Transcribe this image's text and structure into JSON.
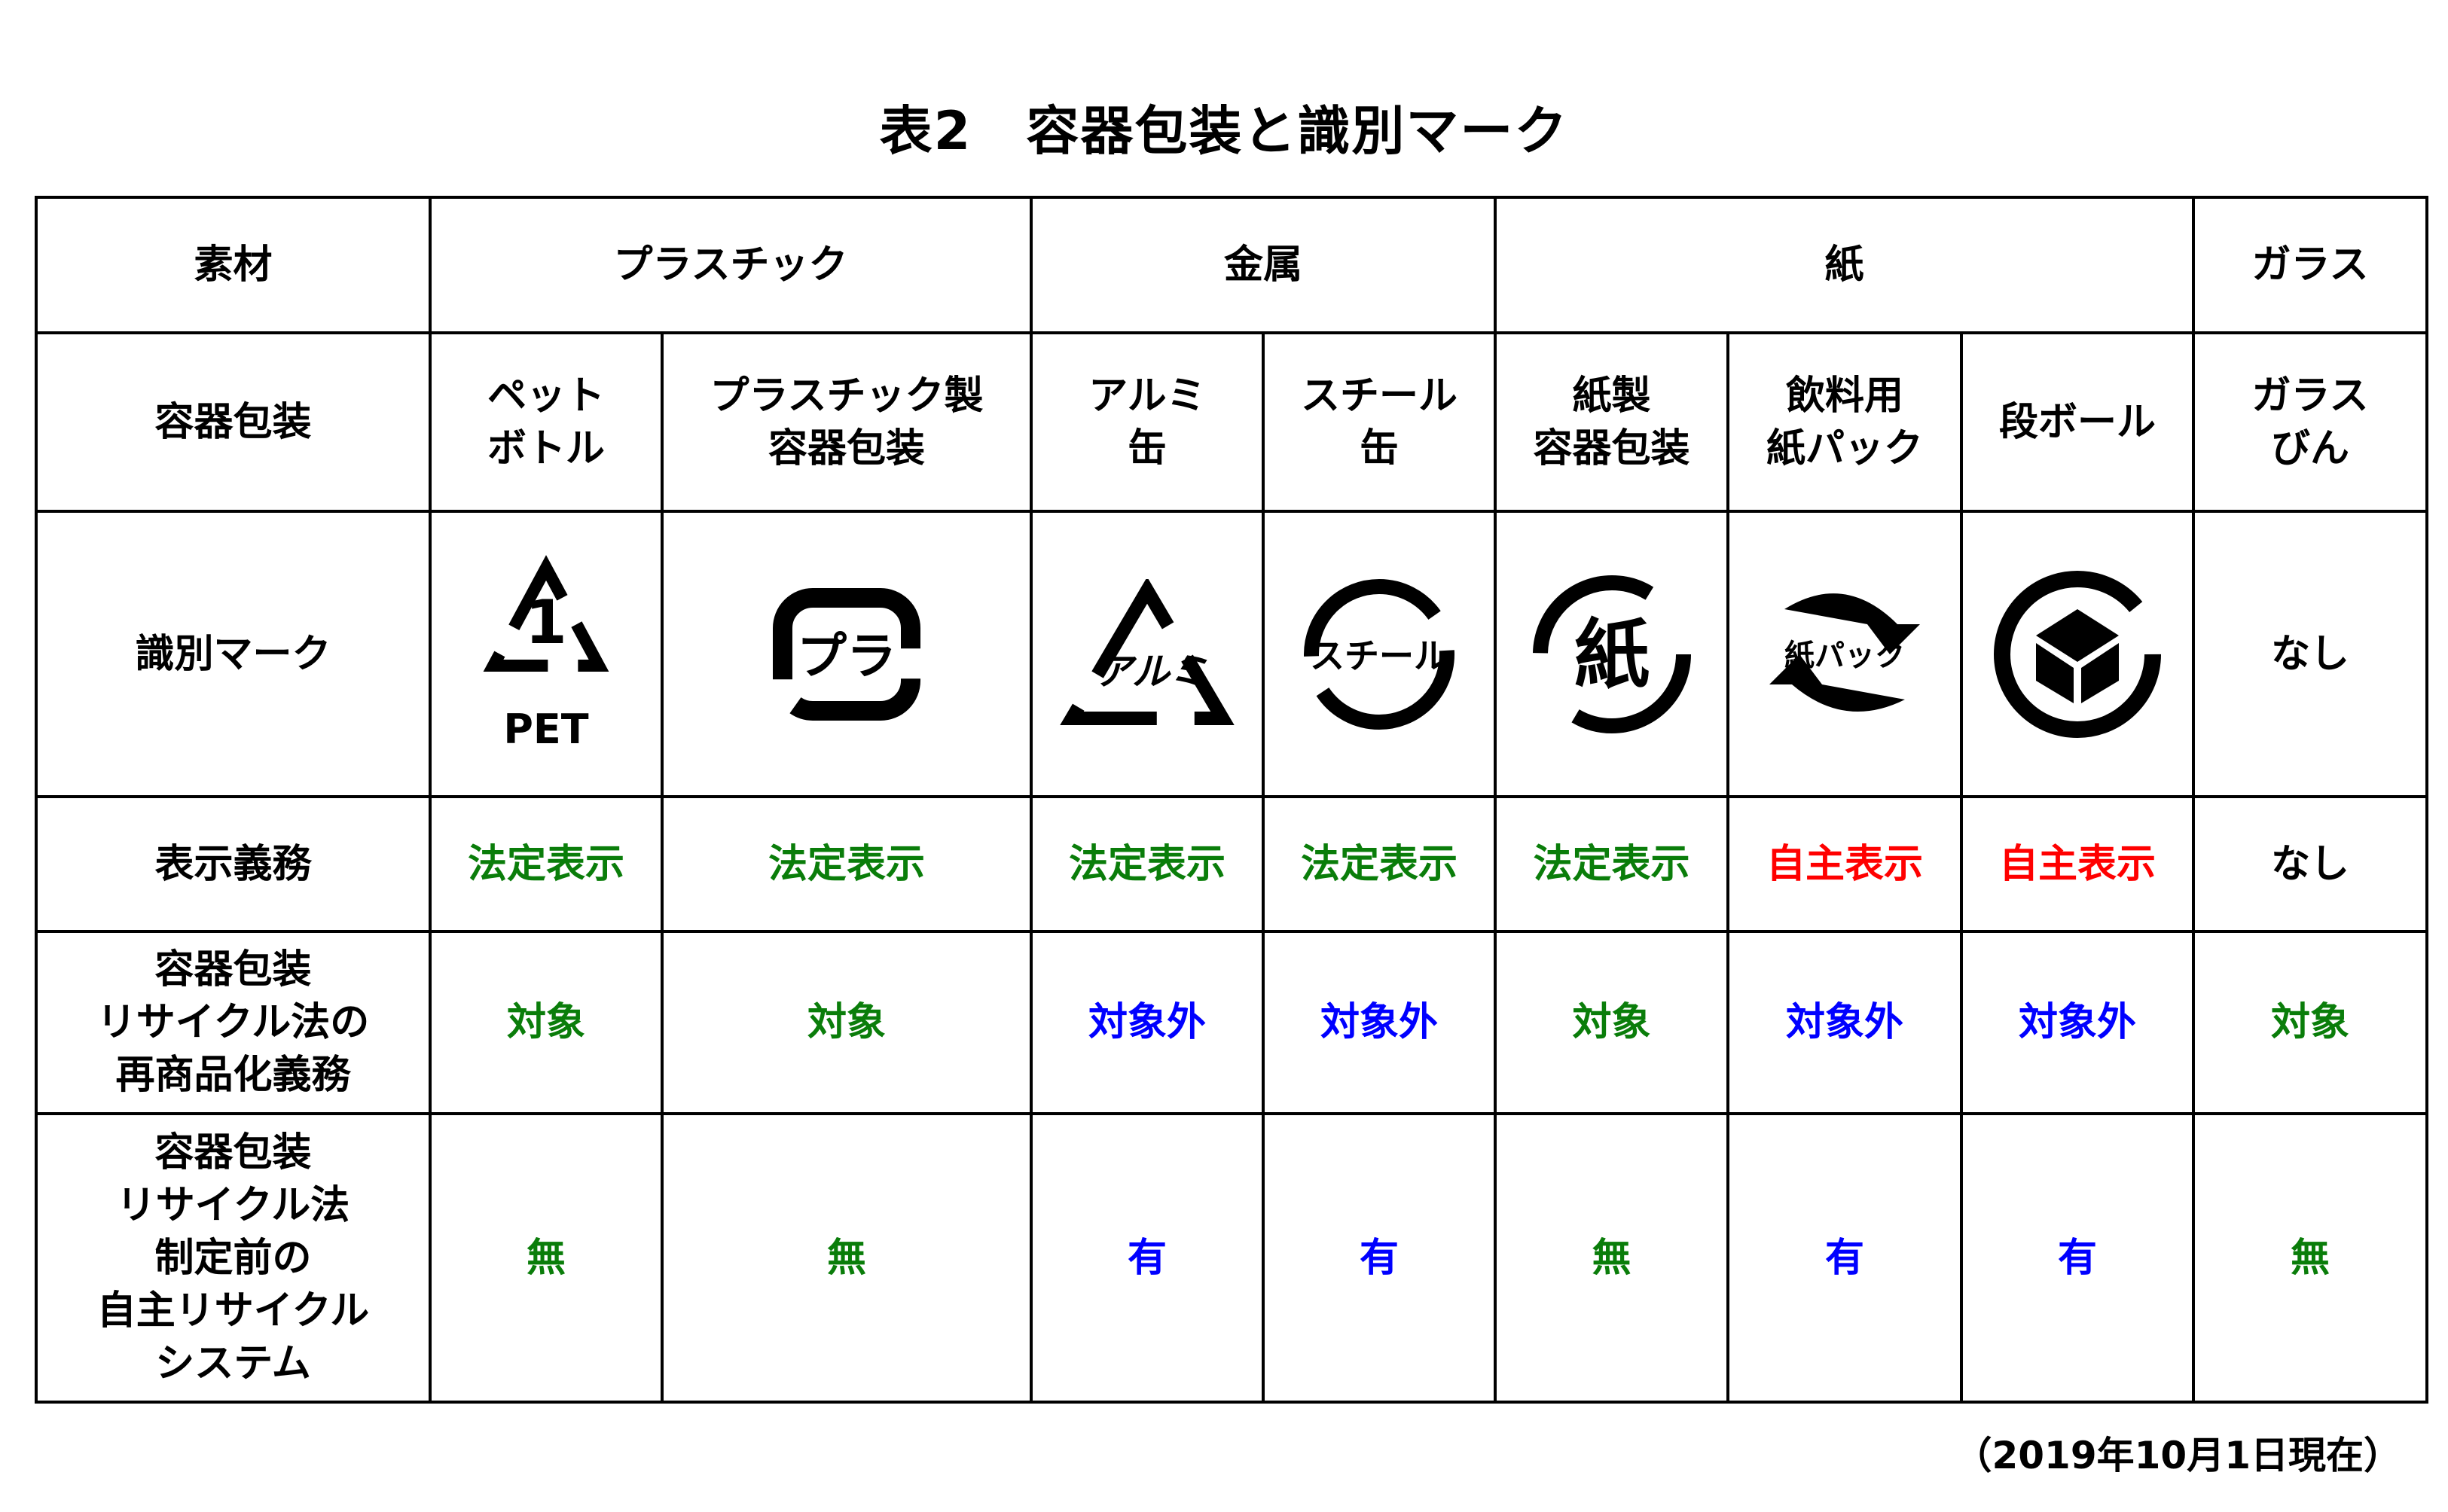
{
  "title": "表2　容器包装と識別マーク",
  "headers": {
    "material": "素材",
    "plastic": "プラスチック",
    "metal": "金属",
    "paper": "紙",
    "glass": "ガラス"
  },
  "row_labels": {
    "container": "容器包装",
    "mark": "識別マーク",
    "obligation": "表示義務",
    "reprocess": "容器包装\nリサイクル法の\n再商品化義務",
    "voluntary": "容器包装\nリサイクル法\n制定前の\n自主リサイクル\nシステム"
  },
  "columns": [
    {
      "name": "ペット\nボトル",
      "mark": "pet-recycle-mark",
      "mark_text": "1",
      "mark_caption": "PET",
      "obligation": "法定表示",
      "obl_color": "g",
      "reprocess": "対象",
      "rp_color": "g",
      "voluntary": "無",
      "v_color": "g"
    },
    {
      "name": "プラスチック製\n容器包装",
      "mark": "pla-recycle-mark",
      "mark_text": "プラ",
      "obligation": "法定表示",
      "obl_color": "g",
      "reprocess": "対象",
      "rp_color": "g",
      "voluntary": "無",
      "v_color": "g"
    },
    {
      "name": "アルミ\n缶",
      "mark": "aluminum-recycle-mark",
      "mark_text": "アルミ",
      "obligation": "法定表示",
      "obl_color": "g",
      "reprocess": "対象外",
      "rp_color": "b",
      "voluntary": "有",
      "v_color": "b"
    },
    {
      "name": "スチール\n缶",
      "mark": "steel-recycle-mark",
      "mark_text": "スチール",
      "obligation": "法定表示",
      "obl_color": "g",
      "reprocess": "対象外",
      "rp_color": "b",
      "voluntary": "有",
      "v_color": "b"
    },
    {
      "name": "紙製\n容器包装",
      "mark": "paper-recycle-mark",
      "mark_text": "紙",
      "obligation": "法定表示",
      "obl_color": "g",
      "reprocess": "対象",
      "rp_color": "g",
      "voluntary": "無",
      "v_color": "g"
    },
    {
      "name": "飲料用\n紙パック",
      "mark": "paper-pack-mark",
      "mark_text": "紙パック",
      "obligation": "自主表示",
      "obl_color": "r",
      "reprocess": "対象外",
      "rp_color": "b",
      "voluntary": "有",
      "v_color": "b"
    },
    {
      "name": "段ボール",
      "mark": "cardboard-mark",
      "mark_text": "",
      "obligation": "自主表示",
      "obl_color": "r",
      "reprocess": "対象外",
      "rp_color": "b",
      "voluntary": "有",
      "v_color": "b"
    },
    {
      "name": "ガラス\nびん",
      "mark": "none",
      "mark_text": "なし",
      "obligation": "なし",
      "obl_color": "k",
      "reprocess": "対象",
      "rp_color": "g",
      "voluntary": "無",
      "v_color": "g"
    }
  ],
  "colors": {
    "g": "#0a7d0a",
    "r": "#ff0000",
    "b": "#0000ff",
    "k": "#000000"
  },
  "note": "（2019年10月1日現在）"
}
